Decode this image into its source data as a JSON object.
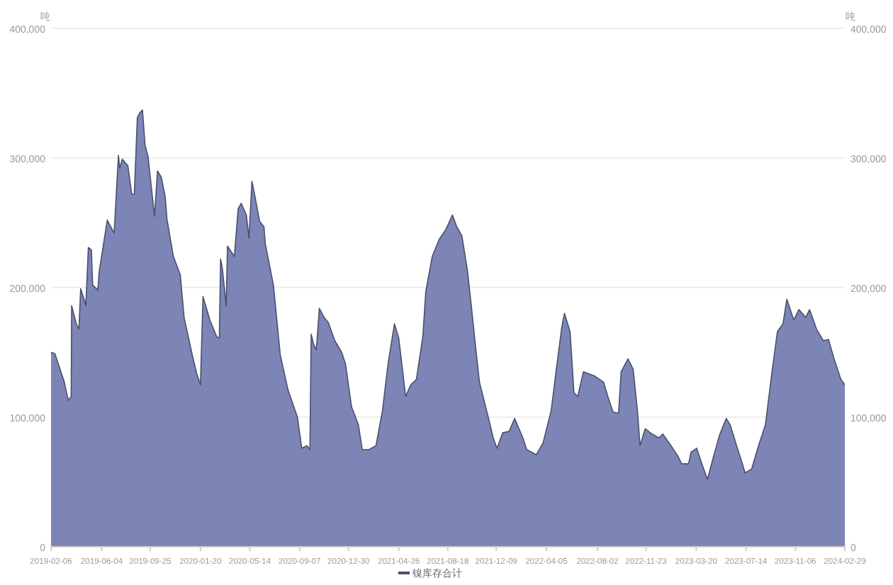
{
  "chart_data": {
    "type": "area",
    "ylabel": "吨",
    "y2label": "吨",
    "grid": "y",
    "legend": "bottom",
    "x": [
      "2019-02-06",
      "2019-02-15",
      "2019-02-24",
      "2019-03-09",
      "2019-03-18",
      "2019-03-25",
      "2019-03-26",
      "2019-04-06",
      "2019-04-12",
      "2019-04-16",
      "2019-04-25",
      "2019-04-28",
      "2019-05-04",
      "2019-05-11",
      "2019-05-14",
      "2019-05-26",
      "2019-05-29",
      "2019-06-17",
      "2019-07-03",
      "2019-07-13",
      "2019-07-16",
      "2019-07-22",
      "2019-08-04",
      "2019-08-13",
      "2019-08-19",
      "2019-08-26",
      "2019-09-01",
      "2019-09-07",
      "2019-09-13",
      "2019-09-20",
      "2019-10-05",
      "2019-10-12",
      "2019-10-21",
      "2019-10-30",
      "2019-11-03",
      "2019-11-18",
      "2019-12-04",
      "2019-12-13",
      "2020-01-01",
      "2020-01-11",
      "2020-01-20",
      "2020-01-26",
      "2020-02-11",
      "2020-02-27",
      "2020-03-04",
      "2020-03-07",
      "2020-03-11",
      "2020-03-20",
      "2020-03-23",
      "2020-04-08",
      "2020-04-17",
      "2020-04-24",
      "2020-05-06",
      "2020-05-12",
      "2020-05-19",
      "2020-05-25",
      "2020-06-06",
      "2020-06-16",
      "2020-06-19",
      "2020-07-08",
      "2020-07-24",
      "2020-08-11",
      "2020-09-02",
      "2020-09-12",
      "2020-09-24",
      "2020-10-01",
      "2020-10-04",
      "2020-10-10",
      "2020-10-16",
      "2020-10-23",
      "2020-11-03",
      "2020-11-13",
      "2020-11-28",
      "2020-12-14",
      "2020-12-23",
      "2021-01-06",
      "2021-01-22",
      "2021-01-31",
      "2021-02-16",
      "2021-03-04",
      "2021-03-19",
      "2021-04-01",
      "2021-04-16",
      "2021-04-26",
      "2021-05-12",
      "2021-05-24",
      "2021-06-06",
      "2021-06-21",
      "2021-06-28",
      "2021-07-13",
      "2021-07-29",
      "2021-08-14",
      "2021-08-29",
      "2021-09-08",
      "2021-09-20",
      "2021-10-03",
      "2021-10-12",
      "2021-10-22",
      "2021-10-31",
      "2021-11-22",
      "2021-12-02",
      "2021-12-11",
      "2021-12-24",
      "2022-01-08",
      "2022-01-21",
      "2022-02-09",
      "2022-02-18",
      "2022-03-12",
      "2022-03-28",
      "2022-04-16",
      "2022-04-28",
      "2022-05-11",
      "2022-05-17",
      "2022-05-30",
      "2022-06-08",
      "2022-06-17",
      "2022-06-30",
      "2022-07-25",
      "2022-08-16",
      "2022-08-26",
      "2022-09-07",
      "2022-09-20",
      "2022-09-26",
      "2022-10-12",
      "2022-10-24",
      "2022-11-03",
      "2022-11-09",
      "2022-11-21",
      "2022-12-07",
      "2022-12-23",
      "2023-01-01",
      "2023-01-20",
      "2023-02-05",
      "2023-02-14",
      "2023-03-02",
      "2023-03-08",
      "2023-03-21",
      "2023-04-02",
      "2023-04-15",
      "2023-04-27",
      "2023-05-13",
      "2023-05-29",
      "2023-06-07",
      "2023-06-20",
      "2023-07-12",
      "2023-07-27",
      "2023-08-12",
      "2023-08-28",
      "2023-09-12",
      "2023-09-25",
      "2023-10-08",
      "2023-10-17",
      "2023-11-02",
      "2023-11-14",
      "2023-11-30",
      "2023-12-09",
      "2023-12-25",
      "2024-01-10",
      "2024-01-22",
      "2024-02-04",
      "2024-02-20",
      "2024-02-29"
    ],
    "series": [
      {
        "name": "镍库存合计",
        "color": "#7c85b6",
        "values": [
          150000,
          149000,
          140000,
          127000,
          113000,
          116000,
          186000,
          172000,
          168000,
          199000,
          190000,
          186000,
          231000,
          229000,
          202000,
          198000,
          212000,
          252000,
          242000,
          302000,
          292000,
          299000,
          294000,
          272000,
          272000,
          331000,
          335000,
          337000,
          310000,
          301000,
          255000,
          290000,
          285000,
          270000,
          253000,
          224000,
          210000,
          177000,
          148000,
          134000,
          125000,
          193000,
          175000,
          162000,
          161000,
          222000,
          215000,
          186000,
          232000,
          224000,
          261000,
          265000,
          256000,
          238000,
          282000,
          272000,
          251000,
          247000,
          234000,
          202000,
          148000,
          121000,
          100000,
          76000,
          78000,
          75000,
          164000,
          156000,
          152000,
          184000,
          177000,
          173000,
          159000,
          150000,
          141000,
          108000,
          94000,
          75000,
          75000,
          78000,
          105000,
          141000,
          172000,
          161000,
          116000,
          125000,
          129000,
          162000,
          197000,
          224000,
          237000,
          245000,
          256000,
          247000,
          240000,
          213000,
          186000,
          154000,
          127000,
          98000,
          84000,
          76000,
          88000,
          89000,
          99000,
          84000,
          75000,
          71000,
          80000,
          105000,
          137000,
          170000,
          180000,
          166000,
          119000,
          116000,
          135000,
          132000,
          127000,
          116000,
          104000,
          103000,
          135000,
          145000,
          137000,
          105000,
          78000,
          91000,
          87000,
          84000,
          87000,
          78000,
          70000,
          64000,
          64000,
          73000,
          76000,
          64000,
          52000,
          67000,
          86000,
          99000,
          94000,
          80000,
          57000,
          60000,
          78000,
          94000,
          134000,
          166000,
          172000,
          191000,
          175000,
          183000,
          177000,
          183000,
          168000,
          159000,
          160000,
          145000,
          129000,
          125000
        ]
      }
    ],
    "xlim": [
      "2019-02-06",
      "2024-02-29"
    ],
    "xticks": [
      "2019-02-06",
      "2019-06-04",
      "2019-09-25",
      "2020-01-20",
      "2020-05-14",
      "2020-09-07",
      "2020-12-30",
      "2021-04-26",
      "2021-08-18",
      "2021-12-09",
      "2022-04-05",
      "2022-08-02",
      "2022-11-23",
      "2023-03-20",
      "2023-07-14",
      "2023-11-06",
      "2024-02-29"
    ],
    "ylim": [
      0,
      400000
    ],
    "yticks": [
      0,
      {
        "value": 100000,
        "label": "100,000"
      },
      {
        "value": 200000,
        "label": "200,000"
      },
      {
        "value": 300000,
        "label": "300,000"
      },
      {
        "value": 400000,
        "label": "400,000"
      }
    ],
    "y2lim": [
      0,
      400000
    ],
    "y2ticks": [
      0,
      {
        "value": 100000,
        "label": "100,000"
      },
      {
        "value": 200000,
        "label": "200,000"
      },
      {
        "value": 300000,
        "label": "300,000"
      },
      {
        "value": 400000,
        "label": "400,000"
      }
    ]
  }
}
